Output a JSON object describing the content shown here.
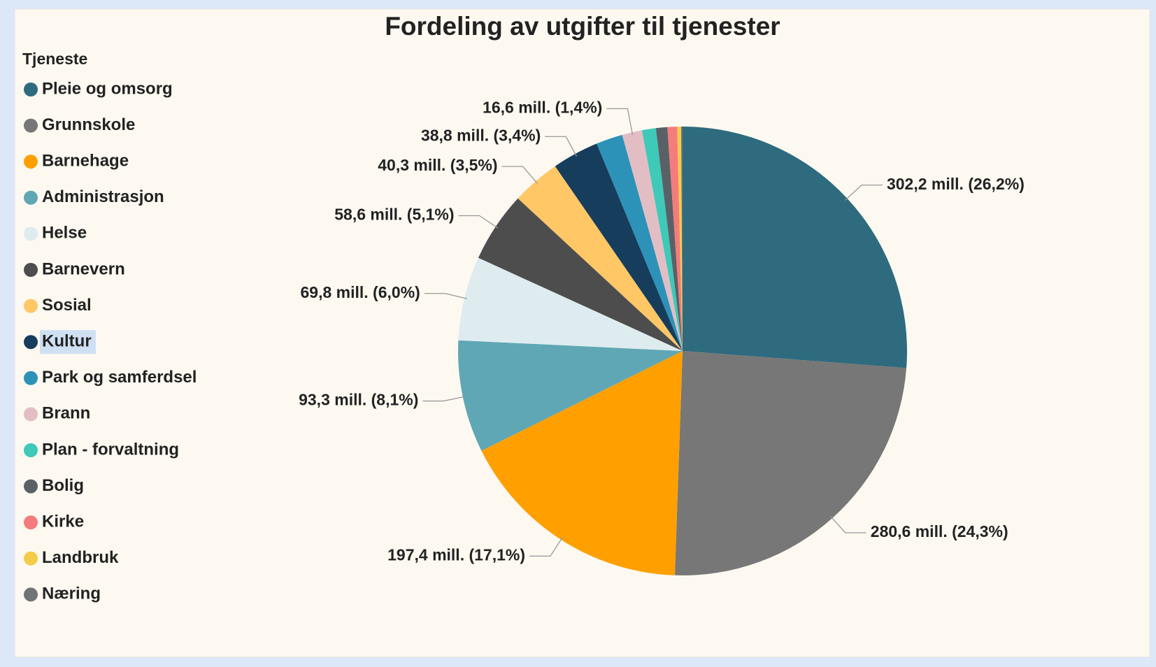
{
  "chart_data": {
    "type": "pie",
    "title": "Fordeling av utgifter til tjenester",
    "legend_title": "Tjeneste",
    "legend_position": "left",
    "categories": [
      "Pleie og omsorg",
      "Grunnskole",
      "Barnehage",
      "Administrasjon",
      "Helse",
      "Barnevern",
      "Sosial",
      "Kultur",
      "Park og samferdsel",
      "Brann",
      "Plan - forvaltning",
      "Bolig",
      "Kirke",
      "Landbruk",
      "Næring"
    ],
    "values": [
      302.2,
      280.6,
      197.4,
      93.3,
      69.8,
      58.6,
      40.3,
      38.8,
      22.0,
      16.6,
      11.5,
      9.5,
      8.0,
      3.2,
      1.2
    ],
    "value_labels": [
      "302,2 mill. (26,2%)",
      "280,6 mill. (24,3%)",
      "197,4 mill. (17,1%)",
      "93,3 mill. (8,1%)",
      "69,8 mill. (6,0%)",
      "58,6 mill. (5,1%)",
      "40,3 mill. (3,5%)",
      "38,8 mill. (3,4%)",
      null,
      "16,6 mill. (1,4%)",
      null,
      null,
      null,
      null,
      null
    ],
    "colors": [
      "#2e6b7e",
      "#777777",
      "#ffa000",
      "#5fa7b5",
      "#deecf0",
      "#4d4d4d",
      "#ffc765",
      "#163d5c",
      "#2d92b8",
      "#e2bec4",
      "#3ec9b8",
      "#5a6166",
      "#f47c7c",
      "#f5cc4a",
      "#707476"
    ]
  }
}
